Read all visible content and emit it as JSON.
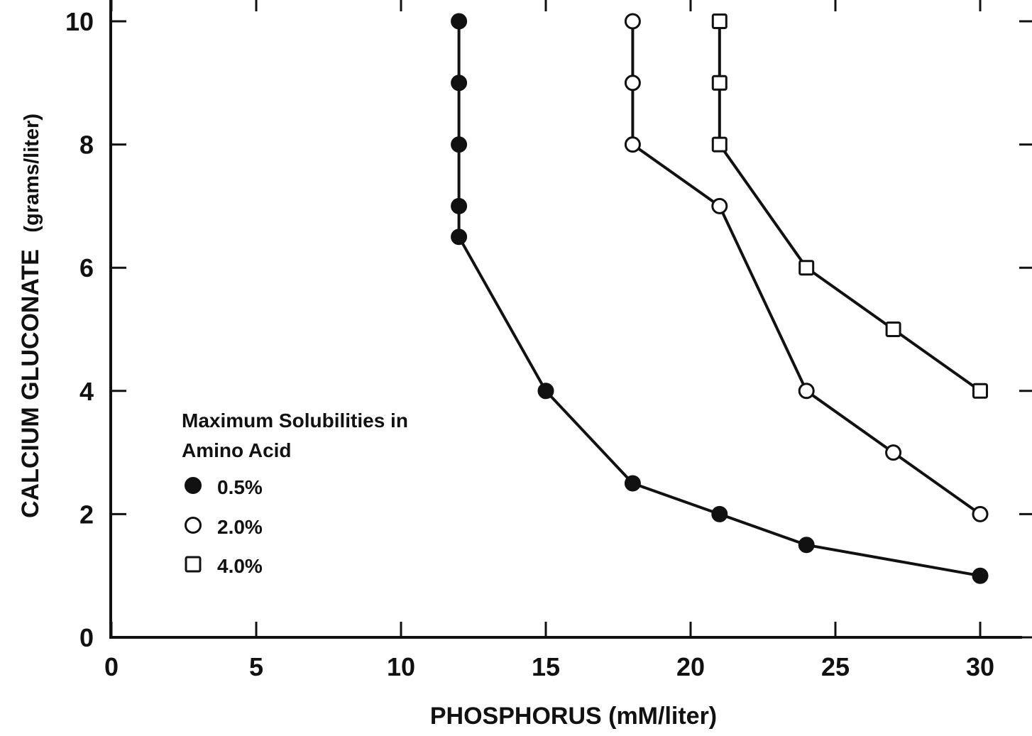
{
  "chart_data": {
    "type": "line",
    "title": "",
    "xlabel": "PHOSPHORUS (mM/liter)",
    "ylabel_main": "CALCIUM GLUCONATE",
    "ylabel_unit": "(grams/liter)",
    "xlim": [
      0,
      31
    ],
    "ylim": [
      0,
      10.4
    ],
    "xticks": [
      0,
      5,
      10,
      15,
      20,
      25,
      30
    ],
    "yticks": [
      0,
      2,
      4,
      6,
      8,
      10
    ],
    "grid": false,
    "legend": {
      "title_line1": "Maximum Solubilities in",
      "title_line2": "Amino Acid",
      "placement": "lower-left"
    },
    "series": [
      {
        "name": "0.5%",
        "marker": "filled-circle",
        "points": [
          {
            "x": 12,
            "y": 10
          },
          {
            "x": 12,
            "y": 9
          },
          {
            "x": 12,
            "y": 8
          },
          {
            "x": 12,
            "y": 7
          },
          {
            "x": 12,
            "y": 6.5
          },
          {
            "x": 15,
            "y": 4
          },
          {
            "x": 18,
            "y": 2.5
          },
          {
            "x": 21,
            "y": 2
          },
          {
            "x": 24,
            "y": 1.5
          },
          {
            "x": 30,
            "y": 1
          }
        ]
      },
      {
        "name": "2.0%",
        "marker": "open-circle",
        "points": [
          {
            "x": 18,
            "y": 10
          },
          {
            "x": 18,
            "y": 9
          },
          {
            "x": 18,
            "y": 8
          },
          {
            "x": 21,
            "y": 7
          },
          {
            "x": 24,
            "y": 4
          },
          {
            "x": 27,
            "y": 3
          },
          {
            "x": 30,
            "y": 2
          }
        ]
      },
      {
        "name": "4.0%",
        "marker": "open-square",
        "points": [
          {
            "x": 21,
            "y": 10
          },
          {
            "x": 21,
            "y": 9
          },
          {
            "x": 21,
            "y": 8
          },
          {
            "x": 24,
            "y": 6
          },
          {
            "x": 27,
            "y": 5
          },
          {
            "x": 30,
            "y": 4
          }
        ]
      }
    ]
  }
}
